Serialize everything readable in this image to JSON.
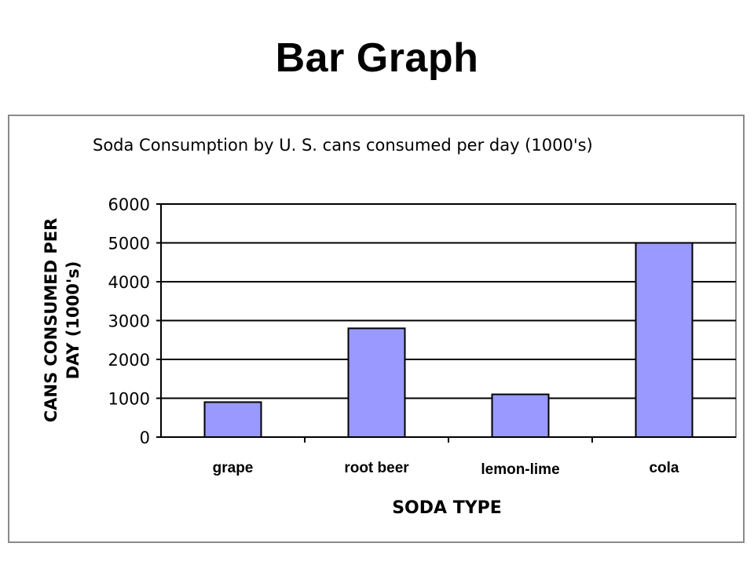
{
  "page": {
    "title": "Bar Graph"
  },
  "chart_data": {
    "type": "bar",
    "title": "Soda Consumption by U. S.  cans consumed per day (1000's)",
    "xlabel": "SODA TYPE",
    "ylabel_line1": "CANS CONSUMED PER",
    "ylabel_line2": "DAY (1000's)",
    "categories": [
      "grape",
      "root beer",
      "lemon-lime",
      "cola"
    ],
    "values": [
      900,
      2800,
      1100,
      5000
    ],
    "ylim": [
      0,
      6000
    ],
    "yticks": [
      "0",
      "1000",
      "2000",
      "3000",
      "4000",
      "5000",
      "6000"
    ],
    "grid": true,
    "legend": "none",
    "colors": {
      "bar_fill": "#9999ff",
      "bar_stroke": "#000000",
      "grid": "#000000",
      "frame": "#8a8a8a"
    }
  }
}
